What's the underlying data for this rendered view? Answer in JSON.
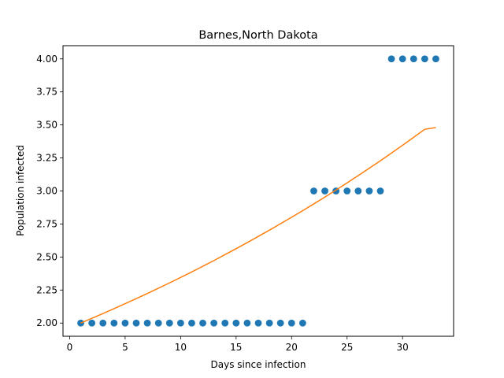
{
  "chart_data": {
    "type": "scatter",
    "title": "Barnes,North Dakota",
    "xlabel": "Days since infection",
    "ylabel": "Population infected",
    "xlim": [
      -0.6,
      34.6
    ],
    "ylim": [
      1.9,
      4.1
    ],
    "x_ticks": [
      0,
      5,
      10,
      15,
      20,
      25,
      30
    ],
    "x_tick_labels": [
      "0",
      "5",
      "10",
      "15",
      "20",
      "25",
      "30"
    ],
    "y_ticks": [
      2.0,
      2.25,
      2.5,
      2.75,
      3.0,
      3.25,
      3.5,
      3.75,
      4.0
    ],
    "y_tick_labels": [
      "2.00",
      "2.25",
      "2.50",
      "2.75",
      "3.00",
      "3.25",
      "3.50",
      "3.75",
      "4.00"
    ],
    "grid": false,
    "legend": "none",
    "series": [
      {
        "kind": "scatter",
        "color": "#1f77b4",
        "x": [
          1,
          2,
          3,
          4,
          5,
          6,
          7,
          8,
          9,
          10,
          11,
          12,
          13,
          14,
          15,
          16,
          17,
          18,
          19,
          20,
          21,
          22,
          23,
          24,
          25,
          26,
          27,
          28,
          29,
          30,
          31,
          32,
          33
        ],
        "y": [
          2,
          2,
          2,
          2,
          2,
          2,
          2,
          2,
          2,
          2,
          2,
          2,
          2,
          2,
          2,
          2,
          2,
          2,
          2,
          2,
          2,
          3,
          3,
          3,
          3,
          3,
          3,
          3,
          4,
          4,
          4,
          4,
          4
        ]
      },
      {
        "kind": "line",
        "color": "#ff7f0e",
        "x": [
          1,
          2,
          3,
          4,
          5,
          6,
          7,
          8,
          9,
          10,
          11,
          12,
          13,
          14,
          15,
          16,
          17,
          18,
          19,
          20,
          21,
          22,
          23,
          24,
          25,
          26,
          27,
          28,
          29,
          30,
          31,
          32,
          33
        ],
        "y": [
          2.0,
          2.036,
          2.072,
          2.109,
          2.147,
          2.185,
          2.224,
          2.264,
          2.304,
          2.345,
          2.387,
          2.43,
          2.473,
          2.518,
          2.563,
          2.609,
          2.656,
          2.703,
          2.752,
          2.801,
          2.851,
          2.902,
          2.954,
          3.007,
          3.061,
          3.116,
          3.172,
          3.229,
          3.287,
          3.346,
          3.406,
          3.467,
          3.48
        ]
      }
    ]
  }
}
